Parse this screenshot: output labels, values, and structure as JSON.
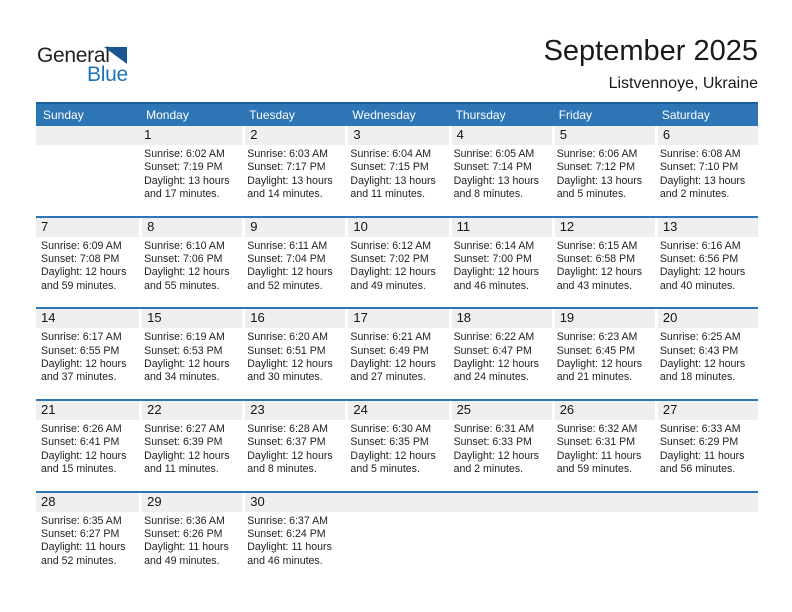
{
  "logo": {
    "word_general": "General",
    "word_blue": "Blue"
  },
  "title": {
    "month_year": "September 2025",
    "location": "Listvennoye, Ukraine"
  },
  "colors": {
    "header_blue": "#2E75B6",
    "header_top_border": "#1F5F9E",
    "band_gray": "#EFEFEF",
    "week_separator": "#2E75B6",
    "logo_blue": "#1B75BC",
    "logo_triangle": "#17568F"
  },
  "calendar": {
    "day_names": [
      "Sunday",
      "Monday",
      "Tuesday",
      "Wednesday",
      "Thursday",
      "Friday",
      "Saturday"
    ],
    "weeks": [
      [
        null,
        {
          "day": "1",
          "lines": [
            "Sunrise: 6:02 AM",
            "Sunset: 7:19 PM",
            "Daylight: 13 hours",
            "and 17 minutes."
          ]
        },
        {
          "day": "2",
          "lines": [
            "Sunrise: 6:03 AM",
            "Sunset: 7:17 PM",
            "Daylight: 13 hours",
            "and 14 minutes."
          ]
        },
        {
          "day": "3",
          "lines": [
            "Sunrise: 6:04 AM",
            "Sunset: 7:15 PM",
            "Daylight: 13 hours",
            "and 11 minutes."
          ]
        },
        {
          "day": "4",
          "lines": [
            "Sunrise: 6:05 AM",
            "Sunset: 7:14 PM",
            "Daylight: 13 hours",
            "and 8 minutes."
          ]
        },
        {
          "day": "5",
          "lines": [
            "Sunrise: 6:06 AM",
            "Sunset: 7:12 PM",
            "Daylight: 13 hours",
            "and 5 minutes."
          ]
        },
        {
          "day": "6",
          "lines": [
            "Sunrise: 6:08 AM",
            "Sunset: 7:10 PM",
            "Daylight: 13 hours",
            "and 2 minutes."
          ]
        }
      ],
      [
        {
          "day": "7",
          "lines": [
            "Sunrise: 6:09 AM",
            "Sunset: 7:08 PM",
            "Daylight: 12 hours",
            "and 59 minutes."
          ]
        },
        {
          "day": "8",
          "lines": [
            "Sunrise: 6:10 AM",
            "Sunset: 7:06 PM",
            "Daylight: 12 hours",
            "and 55 minutes."
          ]
        },
        {
          "day": "9",
          "lines": [
            "Sunrise: 6:11 AM",
            "Sunset: 7:04 PM",
            "Daylight: 12 hours",
            "and 52 minutes."
          ]
        },
        {
          "day": "10",
          "lines": [
            "Sunrise: 6:12 AM",
            "Sunset: 7:02 PM",
            "Daylight: 12 hours",
            "and 49 minutes."
          ]
        },
        {
          "day": "11",
          "lines": [
            "Sunrise: 6:14 AM",
            "Sunset: 7:00 PM",
            "Daylight: 12 hours",
            "and 46 minutes."
          ]
        },
        {
          "day": "12",
          "lines": [
            "Sunrise: 6:15 AM",
            "Sunset: 6:58 PM",
            "Daylight: 12 hours",
            "and 43 minutes."
          ]
        },
        {
          "day": "13",
          "lines": [
            "Sunrise: 6:16 AM",
            "Sunset: 6:56 PM",
            "Daylight: 12 hours",
            "and 40 minutes."
          ]
        }
      ],
      [
        {
          "day": "14",
          "lines": [
            "Sunrise: 6:17 AM",
            "Sunset: 6:55 PM",
            "Daylight: 12 hours",
            "and 37 minutes."
          ]
        },
        {
          "day": "15",
          "lines": [
            "Sunrise: 6:19 AM",
            "Sunset: 6:53 PM",
            "Daylight: 12 hours",
            "and 34 minutes."
          ]
        },
        {
          "day": "16",
          "lines": [
            "Sunrise: 6:20 AM",
            "Sunset: 6:51 PM",
            "Daylight: 12 hours",
            "and 30 minutes."
          ]
        },
        {
          "day": "17",
          "lines": [
            "Sunrise: 6:21 AM",
            "Sunset: 6:49 PM",
            "Daylight: 12 hours",
            "and 27 minutes."
          ]
        },
        {
          "day": "18",
          "lines": [
            "Sunrise: 6:22 AM",
            "Sunset: 6:47 PM",
            "Daylight: 12 hours",
            "and 24 minutes."
          ]
        },
        {
          "day": "19",
          "lines": [
            "Sunrise: 6:23 AM",
            "Sunset: 6:45 PM",
            "Daylight: 12 hours",
            "and 21 minutes."
          ]
        },
        {
          "day": "20",
          "lines": [
            "Sunrise: 6:25 AM",
            "Sunset: 6:43 PM",
            "Daylight: 12 hours",
            "and 18 minutes."
          ]
        }
      ],
      [
        {
          "day": "21",
          "lines": [
            "Sunrise: 6:26 AM",
            "Sunset: 6:41 PM",
            "Daylight: 12 hours",
            "and 15 minutes."
          ]
        },
        {
          "day": "22",
          "lines": [
            "Sunrise: 6:27 AM",
            "Sunset: 6:39 PM",
            "Daylight: 12 hours",
            "and 11 minutes."
          ]
        },
        {
          "day": "23",
          "lines": [
            "Sunrise: 6:28 AM",
            "Sunset: 6:37 PM",
            "Daylight: 12 hours",
            "and 8 minutes."
          ]
        },
        {
          "day": "24",
          "lines": [
            "Sunrise: 6:30 AM",
            "Sunset: 6:35 PM",
            "Daylight: 12 hours",
            "and 5 minutes."
          ]
        },
        {
          "day": "25",
          "lines": [
            "Sunrise: 6:31 AM",
            "Sunset: 6:33 PM",
            "Daylight: 12 hours",
            "and 2 minutes."
          ]
        },
        {
          "day": "26",
          "lines": [
            "Sunrise: 6:32 AM",
            "Sunset: 6:31 PM",
            "Daylight: 11 hours",
            "and 59 minutes."
          ]
        },
        {
          "day": "27",
          "lines": [
            "Sunrise: 6:33 AM",
            "Sunset: 6:29 PM",
            "Daylight: 11 hours",
            "and 56 minutes."
          ]
        }
      ],
      [
        {
          "day": "28",
          "lines": [
            "Sunrise: 6:35 AM",
            "Sunset: 6:27 PM",
            "Daylight: 11 hours",
            "and 52 minutes."
          ]
        },
        {
          "day": "29",
          "lines": [
            "Sunrise: 6:36 AM",
            "Sunset: 6:26 PM",
            "Daylight: 11 hours",
            "and 49 minutes."
          ]
        },
        {
          "day": "30",
          "lines": [
            "Sunrise: 6:37 AM",
            "Sunset: 6:24 PM",
            "Daylight: 11 hours",
            "and 46 minutes."
          ]
        },
        null,
        null,
        null,
        null
      ]
    ]
  }
}
